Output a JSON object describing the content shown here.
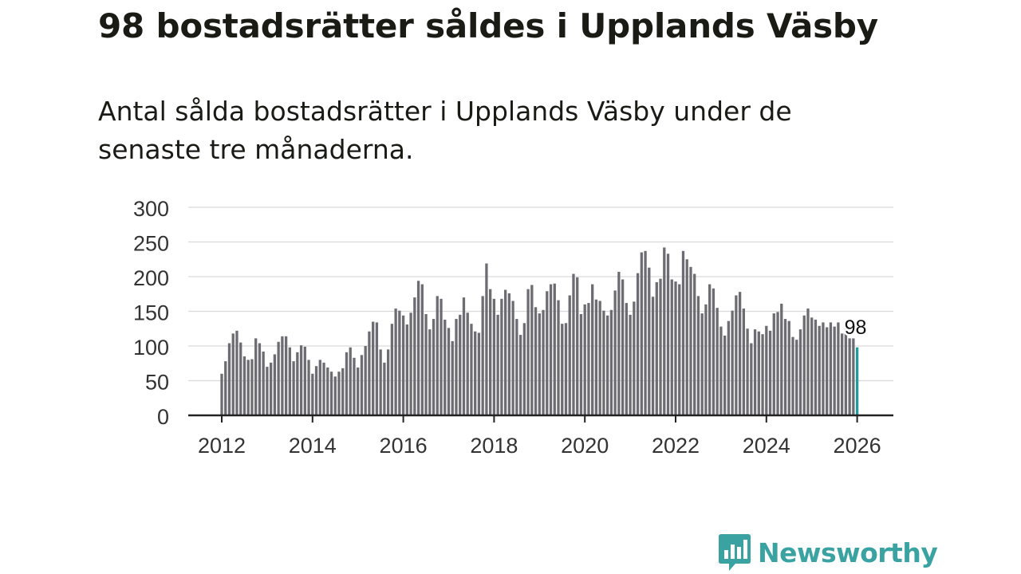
{
  "headline": "98 bostadsrätter såldes i Upplands Väsby",
  "subtitle": "Antal sålda bostadsrätter i Upplands Väsby under de senaste tre månaderna.",
  "brand": {
    "name": "Newsworthy",
    "logo_icon": "bar-chart-speech-bubble-icon",
    "color": "#3aa3a2"
  },
  "colors": {
    "bar": "#6d6c72",
    "highlight": "#1f9d9c",
    "grid": "#d9d9d9",
    "axis": "#222222"
  },
  "chart_data": {
    "type": "bar",
    "title": "98 bostadsrätter såldes i Upplands Väsby",
    "xlabel": "",
    "ylabel": "",
    "ylim": [
      0,
      300
    ],
    "yticks": [
      0,
      50,
      100,
      150,
      200,
      250,
      300
    ],
    "xticks": [
      "2012",
      "2014",
      "2016",
      "2018",
      "2020",
      "2022",
      "2024",
      "2026"
    ],
    "x_start": "2012-01",
    "x_step": "month",
    "highlight_label": "98",
    "values": [
      60,
      78,
      104,
      118,
      122,
      105,
      85,
      80,
      81,
      111,
      104,
      92,
      70,
      76,
      88,
      106,
      114,
      114,
      98,
      78,
      91,
      101,
      99,
      80,
      60,
      71,
      80,
      76,
      69,
      63,
      56,
      63,
      68,
      91,
      98,
      83,
      69,
      87,
      100,
      121,
      135,
      134,
      95,
      76,
      95,
      132,
      154,
      151,
      144,
      131,
      148,
      170,
      194,
      189,
      146,
      124,
      139,
      172,
      168,
      138,
      126,
      107,
      139,
      145,
      170,
      148,
      132,
      121,
      119,
      172,
      219,
      182,
      168,
      145,
      168,
      181,
      176,
      165,
      139,
      116,
      133,
      182,
      188,
      156,
      147,
      152,
      179,
      189,
      190,
      166,
      132,
      133,
      173,
      204,
      199,
      146,
      160,
      162,
      189,
      167,
      165,
      151,
      144,
      152,
      180,
      207,
      196,
      162,
      145,
      164,
      205,
      235,
      237,
      213,
      171,
      192,
      197,
      242,
      233,
      196,
      193,
      189,
      237,
      225,
      214,
      204,
      172,
      147,
      160,
      189,
      183,
      155,
      128,
      115,
      136,
      151,
      173,
      178,
      154,
      125,
      104,
      124,
      121,
      117,
      129,
      122,
      147,
      149,
      161,
      139,
      136,
      113,
      109,
      124,
      144,
      154,
      141,
      138,
      129,
      134,
      127,
      134,
      128,
      134,
      118,
      132,
      111,
      111,
      98
    ]
  }
}
